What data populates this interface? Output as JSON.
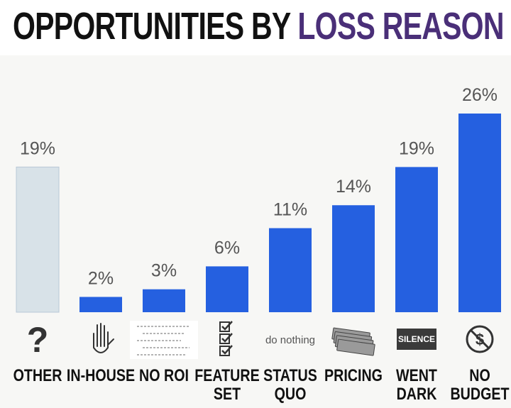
{
  "header": {
    "title_part1": "OPPORTUNITIES BY",
    "title_part2": "LOSS REASON"
  },
  "colors": {
    "bar": "#2560e0",
    "bar_highlight": "#d8e2e8",
    "title_dark": "#111111",
    "title_accent": "#4a2f78",
    "value_text": "#555555",
    "background": "#f7f7f5"
  },
  "chart_data": {
    "type": "bar",
    "title": "OPPORTUNITIES BY LOSS REASON",
    "xlabel": "",
    "ylabel": "",
    "ylim": [
      0,
      26
    ],
    "grid": false,
    "legend": "none",
    "categories": [
      [
        "OTHER"
      ],
      [
        "IN-HOUSE"
      ],
      [
        "NO ROI"
      ],
      [
        "FEATURE",
        "SET"
      ],
      [
        "STATUS",
        "QUO"
      ],
      [
        "PRICING"
      ],
      [
        "WENT",
        "DARK"
      ],
      [
        "NO",
        "BUDGET"
      ]
    ],
    "values": [
      19,
      2,
      3,
      6,
      11,
      14,
      19,
      26
    ],
    "value_labels": [
      "19%",
      "2%",
      "3%",
      "6%",
      "11%",
      "14%",
      "19%",
      "26%"
    ],
    "highlighted": [
      true,
      false,
      false,
      false,
      false,
      false,
      false,
      false
    ],
    "icons": [
      "question-mark-icon",
      "raised-hand-icon",
      "equations-icon",
      "checklist-icon",
      "do-nothing-icon",
      "money-stack-icon",
      "silence-icon",
      "no-dollar-icon"
    ],
    "icon_texts": {
      "do-nothing-icon": "do nothing",
      "silence-icon": "SILENCE"
    }
  }
}
